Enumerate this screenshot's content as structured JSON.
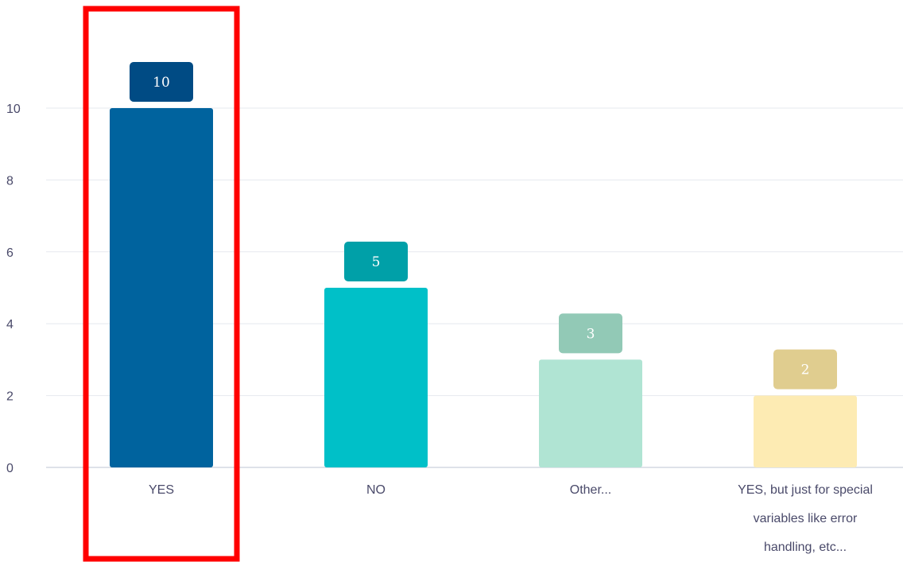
{
  "chart_data": {
    "type": "bar",
    "title": "",
    "xlabel": "",
    "ylabel": "",
    "categories": [
      [
        "YES"
      ],
      [
        "NO"
      ],
      [
        "Other..."
      ],
      [
        "YES, but just for special",
        "variables like error",
        "handling, etc..."
      ]
    ],
    "values": [
      10,
      5,
      3,
      2
    ],
    "ylim": [
      0,
      11
    ],
    "yticks": [
      0,
      2,
      4,
      6,
      8,
      10
    ],
    "grid": true,
    "legend": "none",
    "colors": {
      "bars": [
        "#00639e",
        "#00c0c8",
        "#b0e4d3",
        "#fdebb3"
      ],
      "labels": [
        "#004b84",
        "#00a0a8",
        "#92c9b6",
        "#e0cd8f"
      ]
    },
    "highlight": {
      "category_index": 0,
      "color": "#ff0000"
    }
  }
}
